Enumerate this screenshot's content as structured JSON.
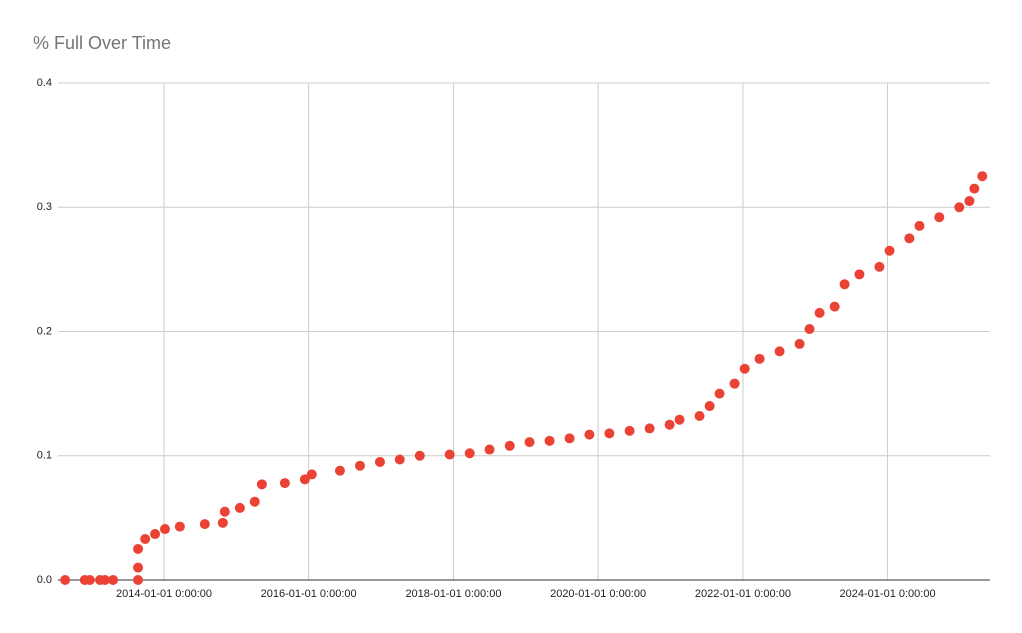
{
  "chart_data": {
    "type": "scatter",
    "title": "% Full Over Time",
    "x": [
      "2012-08-20",
      "2012-11-27",
      "2012-12-23",
      "2013-02-12",
      "2013-03-09",
      "2013-04-19",
      "2013-08-23",
      "2013-08-23",
      "2013-08-23",
      "2013-09-28",
      "2013-11-17",
      "2014-01-06",
      "2014-03-22",
      "2014-07-26",
      "2014-10-25",
      "2014-11-04",
      "2015-01-19",
      "2015-04-04",
      "2015-05-10",
      "2015-09-03",
      "2015-12-13",
      "2016-01-17",
      "2016-06-07",
      "2016-09-16",
      "2016-12-26",
      "2017-04-05",
      "2017-07-15",
      "2017-12-13",
      "2018-03-24",
      "2018-07-02",
      "2018-10-12",
      "2019-01-20",
      "2019-05-01",
      "2019-08-10",
      "2019-11-18",
      "2020-02-27",
      "2020-06-08",
      "2020-09-17",
      "2020-12-27",
      "2021-02-15",
      "2021-05-27",
      "2021-07-17",
      "2021-09-05",
      "2021-11-20",
      "2022-01-10",
      "2022-03-26",
      "2022-07-05",
      "2022-10-14",
      "2022-12-03",
      "2023-01-23",
      "2023-04-09",
      "2023-05-29",
      "2023-08-12",
      "2023-11-21",
      "2024-01-11",
      "2024-04-20",
      "2024-06-10",
      "2024-09-18",
      "2024-12-28",
      "2025-02-17",
      "2025-03-14",
      "2025-04-23"
    ],
    "values": [
      0,
      0,
      0,
      0,
      0,
      0,
      0,
      0.01,
      0.025,
      0.033,
      0.037,
      0.041,
      0.043,
      0.045,
      0.046,
      0.055,
      0.058,
      0.063,
      0.077,
      0.078,
      0.081,
      0.085,
      0.088,
      0.092,
      0.095,
      0.097,
      0.1,
      0.101,
      0.102,
      0.105,
      0.108,
      0.111,
      0.112,
      0.114,
      0.117,
      0.118,
      0.12,
      0.122,
      0.125,
      0.129,
      0.132,
      0.14,
      0.15,
      0.158,
      0.17,
      0.178,
      0.184,
      0.19,
      0.202,
      0.215,
      0.22,
      0.238,
      0.246,
      0.252,
      0.265,
      0.275,
      0.285,
      0.292,
      0.3,
      0.305,
      0.315,
      0.325
    ],
    "color": "#ea4335",
    "xlim": [
      "2012-07-15",
      "2025-06-01"
    ],
    "xticks": [
      {
        "value": "2014-01-01",
        "label": "2014-01-01 0:00:00"
      },
      {
        "value": "2016-01-01",
        "label": "2016-01-01 0:00:00"
      },
      {
        "value": "2018-01-01",
        "label": "2018-01-01 0:00:00"
      },
      {
        "value": "2020-01-01",
        "label": "2020-01-01 0:00:00"
      },
      {
        "value": "2022-01-01",
        "label": "2022-01-01 0:00:00"
      },
      {
        "value": "2024-01-01",
        "label": "2024-01-01 0:00:00"
      }
    ],
    "ylim": [
      0,
      0.4
    ],
    "yticks": [
      {
        "value": 0,
        "label": "0.0"
      },
      0.1,
      0.2,
      0.3,
      0.4
    ],
    "grid": true
  }
}
